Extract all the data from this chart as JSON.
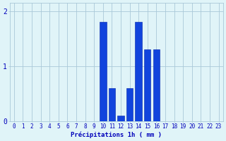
{
  "hours": [
    0,
    1,
    2,
    3,
    4,
    5,
    6,
    7,
    8,
    9,
    10,
    11,
    12,
    13,
    14,
    15,
    16,
    17,
    18,
    19,
    20,
    21,
    22,
    23
  ],
  "values": [
    0,
    0,
    0,
    0,
    0,
    0,
    0,
    0,
    0,
    0,
    1.8,
    0.6,
    0.1,
    0.6,
    1.8,
    1.3,
    1.3,
    0,
    0,
    0,
    0,
    0,
    0,
    0
  ],
  "bar_color": "#1144dd",
  "bar_edge_color": "#0022aa",
  "background_color": "#e0f4f8",
  "grid_color": "#aac8d8",
  "text_color": "#0000bb",
  "xlabel": "Précipitations 1h ( mm )",
  "ylim": [
    0,
    2.15
  ],
  "yticks": [
    0,
    1,
    2
  ],
  "xticks": [
    0,
    1,
    2,
    3,
    4,
    5,
    6,
    7,
    8,
    9,
    10,
    11,
    12,
    13,
    14,
    15,
    16,
    17,
    18,
    19,
    20,
    21,
    22,
    23
  ],
  "label_fontsize": 6.5,
  "tick_fontsize": 5.5
}
